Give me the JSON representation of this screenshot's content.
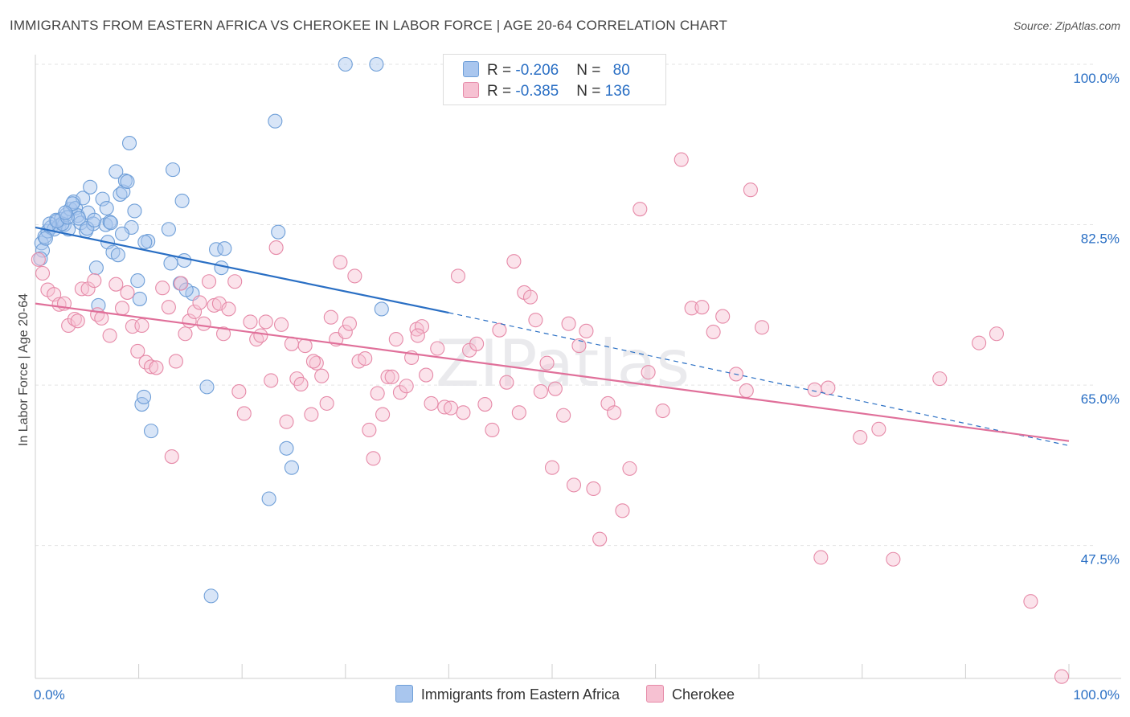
{
  "title": "IMMIGRANTS FROM EASTERN AFRICA VS CHEROKEE IN LABOR FORCE | AGE 20-64 CORRELATION CHART",
  "source": "Source: ZipAtlas.com",
  "watermark": "ZIPatlas",
  "legend": {
    "rows": [
      {
        "r_label": "R = ",
        "r_value": "-0.206",
        "n_label": "N = ",
        "n_value": "80"
      },
      {
        "r_label": "R = ",
        "r_value": "-0.385",
        "n_label": "N = ",
        "n_value": "136"
      }
    ]
  },
  "colors": {
    "blue": "#6f9fd8",
    "blue_fill": "#a9c6ee",
    "blue_line": "#2a6fc4",
    "pink": "#e68aa8",
    "pink_fill": "#f6c1d2",
    "pink_line": "#e0709a",
    "axis_label": "#2a6fc4"
  },
  "chart_data": {
    "type": "scatter",
    "title": "IMMIGRANTS FROM EASTERN AFRICA VS CHEROKEE IN LABOR FORCE | AGE 20-64 CORRELATION CHART",
    "xlabel": "",
    "ylabel": "In Labor Force | Age 20-64",
    "xlim": [
      0,
      100
    ],
    "ylim": [
      33,
      100
    ],
    "x_tick_labels": [
      "0.0%",
      "100.0%"
    ],
    "y_ticks": [
      47.5,
      65.0,
      82.5,
      100.0
    ],
    "y_tick_labels": [
      "47.5%",
      "65.0%",
      "82.5%",
      "100.0%"
    ],
    "grid": true,
    "legend_placement": "bottom",
    "series": [
      {
        "name": "Immigrants from Eastern Africa",
        "color": "#6f9fd8",
        "trend": {
          "x0": 0,
          "y0": 82.2,
          "x1": 40,
          "y1": 72.9,
          "dash_to_x": 100,
          "dash_to_y": 58.4
        },
        "points": [
          [
            0.6,
            80.5
          ],
          [
            0.9,
            81.2
          ],
          [
            1.2,
            81.8
          ],
          [
            1.5,
            82.2
          ],
          [
            1.8,
            82.0
          ],
          [
            2.0,
            83.0
          ],
          [
            2.3,
            82.4
          ],
          [
            2.5,
            83.1
          ],
          [
            2.8,
            82.5
          ],
          [
            3.0,
            83.6
          ],
          [
            3.2,
            82.0
          ],
          [
            3.4,
            84.2
          ],
          [
            3.7,
            85.0
          ],
          [
            3.9,
            84.3
          ],
          [
            4.1,
            83.5
          ],
          [
            4.4,
            82.7
          ],
          [
            4.6,
            85.4
          ],
          [
            4.9,
            81.8
          ],
          [
            5.1,
            83.8
          ],
          [
            5.3,
            86.6
          ],
          [
            5.6,
            82.6
          ],
          [
            5.9,
            77.8
          ],
          [
            6.1,
            73.7
          ],
          [
            6.5,
            85.3
          ],
          [
            6.8,
            82.5
          ],
          [
            7.0,
            80.6
          ],
          [
            7.2,
            82.8
          ],
          [
            7.5,
            79.5
          ],
          [
            7.8,
            88.3
          ],
          [
            8.0,
            79.2
          ],
          [
            8.2,
            85.8
          ],
          [
            8.5,
            86.1
          ],
          [
            8.7,
            87.3
          ],
          [
            8.9,
            87.2
          ],
          [
            9.1,
            91.4
          ],
          [
            9.6,
            84.0
          ],
          [
            9.9,
            76.4
          ],
          [
            10.1,
            74.4
          ],
          [
            10.3,
            62.9
          ],
          [
            10.5,
            63.7
          ],
          [
            10.9,
            80.7
          ],
          [
            11.2,
            60.0
          ],
          [
            12.9,
            82.0
          ],
          [
            13.1,
            78.3
          ],
          [
            13.3,
            88.5
          ],
          [
            14.0,
            76.1
          ],
          [
            14.2,
            85.1
          ],
          [
            14.4,
            78.6
          ],
          [
            15.2,
            75.0
          ],
          [
            16.6,
            64.8
          ],
          [
            17.0,
            42.0
          ],
          [
            17.5,
            79.8
          ],
          [
            18.0,
            77.8
          ],
          [
            22.6,
            52.6
          ],
          [
            23.2,
            93.8
          ],
          [
            23.5,
            81.7
          ],
          [
            24.3,
            58.1
          ],
          [
            24.8,
            56.0
          ],
          [
            30.0,
            100.0
          ],
          [
            33.0,
            100.0
          ],
          [
            33.5,
            73.3
          ],
          [
            0.7,
            79.7
          ],
          [
            1.0,
            81.0
          ],
          [
            2.6,
            82.6
          ],
          [
            3.6,
            84.8
          ],
          [
            4.2,
            83.2
          ],
          [
            6.9,
            84.3
          ],
          [
            7.3,
            82.7
          ],
          [
            9.3,
            82.2
          ],
          [
            0.5,
            78.8
          ],
          [
            1.4,
            82.6
          ],
          [
            2.1,
            82.9
          ],
          [
            3.1,
            83.3
          ],
          [
            5.0,
            82.1
          ],
          [
            5.7,
            83.0
          ],
          [
            8.4,
            81.5
          ],
          [
            10.6,
            80.6
          ],
          [
            14.6,
            75.4
          ],
          [
            18.3,
            79.9
          ],
          [
            2.9,
            83.8
          ]
        ]
      },
      {
        "name": "Cherokee",
        "color": "#e68aa8",
        "trend": {
          "x0": 0,
          "y0": 73.9,
          "x1": 100,
          "y1": 58.9
        },
        "points": [
          [
            0.3,
            78.7
          ],
          [
            0.7,
            77.2
          ],
          [
            1.2,
            75.4
          ],
          [
            1.8,
            74.9
          ],
          [
            2.3,
            73.8
          ],
          [
            2.8,
            73.9
          ],
          [
            3.2,
            71.5
          ],
          [
            3.8,
            72.2
          ],
          [
            4.1,
            72.0
          ],
          [
            4.5,
            75.5
          ],
          [
            5.1,
            75.5
          ],
          [
            5.7,
            76.4
          ],
          [
            6.0,
            72.7
          ],
          [
            6.4,
            72.3
          ],
          [
            7.2,
            70.4
          ],
          [
            7.8,
            76.0
          ],
          [
            8.4,
            73.4
          ],
          [
            8.9,
            75.1
          ],
          [
            9.4,
            71.4
          ],
          [
            9.9,
            68.7
          ],
          [
            10.3,
            71.5
          ],
          [
            10.7,
            67.5
          ],
          [
            11.2,
            67.0
          ],
          [
            11.7,
            66.9
          ],
          [
            12.3,
            75.6
          ],
          [
            12.9,
            73.5
          ],
          [
            13.2,
            57.2
          ],
          [
            14.1,
            76.1
          ],
          [
            14.5,
            70.6
          ],
          [
            14.9,
            72.0
          ],
          [
            15.4,
            73.0
          ],
          [
            15.9,
            74.0
          ],
          [
            16.3,
            71.7
          ],
          [
            16.8,
            76.3
          ],
          [
            17.3,
            73.7
          ],
          [
            17.8,
            73.9
          ],
          [
            18.2,
            70.6
          ],
          [
            18.7,
            73.3
          ],
          [
            19.3,
            76.3
          ],
          [
            19.7,
            64.3
          ],
          [
            20.2,
            61.9
          ],
          [
            20.8,
            71.9
          ],
          [
            21.4,
            70.0
          ],
          [
            21.8,
            70.4
          ],
          [
            22.3,
            71.9
          ],
          [
            22.8,
            65.5
          ],
          [
            23.3,
            80.0
          ],
          [
            23.8,
            71.6
          ],
          [
            24.3,
            61.0
          ],
          [
            24.8,
            69.5
          ],
          [
            25.3,
            65.7
          ],
          [
            25.7,
            65.1
          ],
          [
            26.1,
            69.3
          ],
          [
            26.7,
            61.8
          ],
          [
            27.2,
            67.4
          ],
          [
            27.7,
            66.0
          ],
          [
            28.2,
            63.0
          ],
          [
            28.6,
            72.4
          ],
          [
            29.1,
            70.0
          ],
          [
            29.5,
            78.4
          ],
          [
            30.0,
            70.8
          ],
          [
            30.4,
            71.7
          ],
          [
            30.9,
            76.9
          ],
          [
            31.3,
            67.6
          ],
          [
            31.9,
            67.9
          ],
          [
            32.3,
            60.1
          ],
          [
            32.7,
            57.0
          ],
          [
            33.1,
            64.1
          ],
          [
            33.6,
            61.8
          ],
          [
            34.1,
            65.9
          ],
          [
            34.5,
            65.9
          ],
          [
            34.9,
            70.0
          ],
          [
            35.3,
            64.2
          ],
          [
            35.9,
            64.9
          ],
          [
            36.4,
            68.0
          ],
          [
            36.9,
            71.1
          ],
          [
            37.4,
            71.4
          ],
          [
            37.8,
            66.1
          ],
          [
            38.3,
            63.0
          ],
          [
            38.9,
            69.0
          ],
          [
            39.6,
            62.6
          ],
          [
            40.2,
            62.5
          ],
          [
            40.9,
            76.9
          ],
          [
            41.4,
            62.0
          ],
          [
            42.0,
            68.8
          ],
          [
            42.7,
            69.5
          ],
          [
            43.5,
            62.9
          ],
          [
            44.2,
            60.1
          ],
          [
            44.9,
            71.0
          ],
          [
            45.6,
            65.3
          ],
          [
            46.3,
            78.5
          ],
          [
            46.8,
            62.0
          ],
          [
            47.3,
            75.1
          ],
          [
            47.9,
            74.6
          ],
          [
            48.4,
            72.1
          ],
          [
            48.9,
            64.3
          ],
          [
            49.5,
            67.4
          ],
          [
            50.3,
            64.6
          ],
          [
            51.1,
            61.7
          ],
          [
            51.6,
            71.7
          ],
          [
            52.1,
            54.1
          ],
          [
            52.6,
            69.3
          ],
          [
            53.3,
            70.9
          ],
          [
            54.0,
            53.7
          ],
          [
            54.6,
            48.2
          ],
          [
            55.4,
            63.0
          ],
          [
            56.0,
            62.0
          ],
          [
            56.8,
            51.3
          ],
          [
            57.5,
            55.9
          ],
          [
            58.5,
            84.2
          ],
          [
            59.3,
            66.4
          ],
          [
            60.7,
            62.2
          ],
          [
            62.5,
            89.6
          ],
          [
            63.5,
            73.4
          ],
          [
            64.5,
            73.5
          ],
          [
            65.6,
            70.8
          ],
          [
            66.5,
            72.5
          ],
          [
            67.8,
            66.2
          ],
          [
            68.8,
            64.4
          ],
          [
            69.2,
            86.3
          ],
          [
            70.3,
            71.3
          ],
          [
            75.4,
            64.5
          ],
          [
            76.0,
            46.2
          ],
          [
            76.7,
            64.7
          ],
          [
            79.8,
            59.3
          ],
          [
            81.6,
            60.2
          ],
          [
            83.0,
            46.0
          ],
          [
            87.5,
            65.7
          ],
          [
            91.3,
            69.6
          ],
          [
            93.0,
            70.6
          ],
          [
            96.3,
            41.4
          ],
          [
            99.3,
            33.2
          ],
          [
            13.6,
            67.6
          ],
          [
            26.9,
            67.6
          ],
          [
            37.0,
            70.4
          ],
          [
            50.0,
            56.0
          ]
        ]
      }
    ]
  },
  "bottom_legend": {
    "items": [
      "Immigrants from Eastern Africa",
      "Cherokee"
    ]
  }
}
